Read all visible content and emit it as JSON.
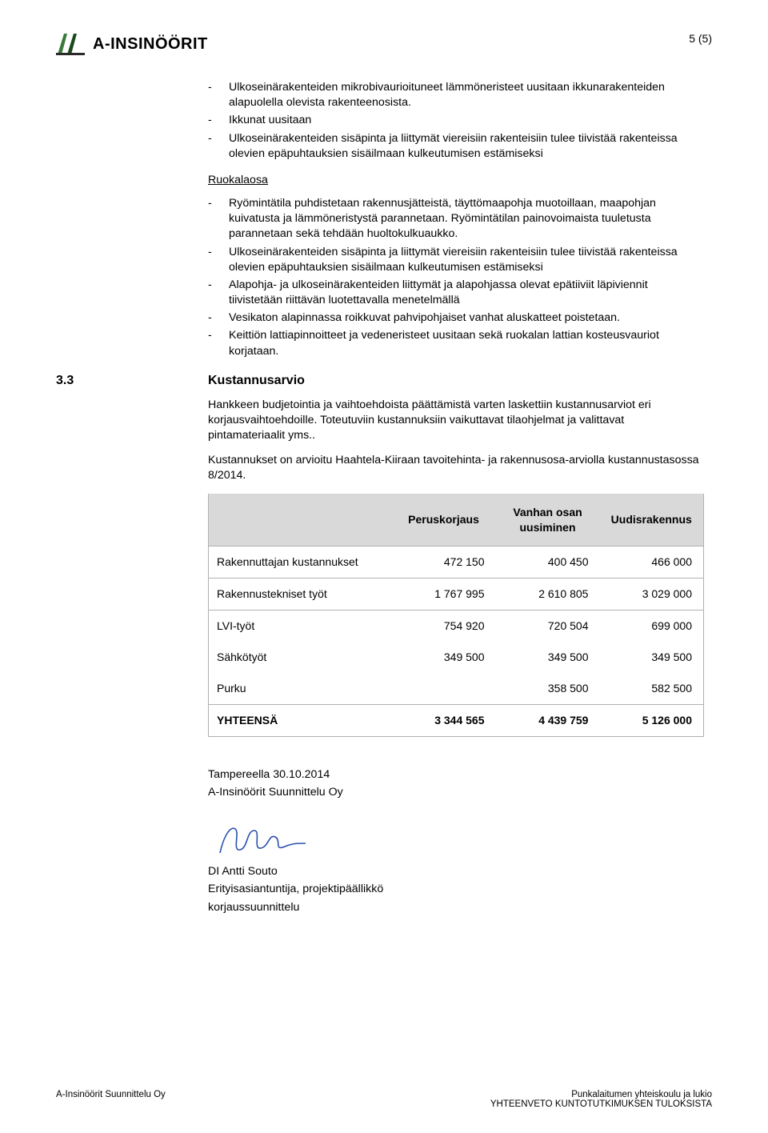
{
  "header": {
    "logo_text": "A-INSINÖÖRIT",
    "page_num": "5 (5)"
  },
  "body": {
    "top_bullets": [
      "Ulkoseinärakenteiden mikrobivaurioituneet lämmöneristeet uusitaan ikkunarakenteiden alapuolella olevista rakenteenosista.",
      "Ikkunat uusitaan",
      "Ulkoseinärakenteiden sisäpinta ja liittymät viereisiin rakenteisiin tulee tiivistää rakenteissa olevien epäpuhtauksien sisäilmaan kulkeutumisen estämiseksi"
    ],
    "ruokala_heading": "Ruokalaosa",
    "ruokala_bullets": [
      "Ryömintätila puhdistetaan rakennusjätteistä, täyttömaapohja muotoillaan, maapohjan kuivatusta ja lämmöneristystä parannetaan. Ryömintätilan painovoimaista tuuletusta parannetaan sekä tehdään huoltokulkuaukko.",
      "Ulkoseinärakenteiden sisäpinta ja liittymät viereisiin rakenteisiin tulee tiivistää rakenteissa olevien epäpuhtauksien sisäilmaan kulkeutumisen estämiseksi",
      "Alapohja- ja ulkoseinärakenteiden liittymät ja alapohjassa olevat epätiiviit läpiviennit tiivistetään riittävän luotettavalla menetelmällä",
      "Vesikaton alapinnassa roikkuvat pahvipohjaiset vanhat aluskatteet poistetaan.",
      "Keittiön lattiapinnoitteet ja vedeneristeet uusitaan sekä ruokalan lattian kosteusvauriot korjataan."
    ]
  },
  "section": {
    "num": "3.3",
    "title": "Kustannusarvio",
    "para1": "Hankkeen budjetointia ja vaihtoehdoista päättämistä varten laskettiin kustannusarviot eri korjausvaihtoehdoille. Toteutuviin kustannuksiin vaikuttavat tilaohjelmat ja valittavat pintamateriaalit yms..",
    "para2": "Kustannukset on arvioitu Haahtela-Kiiraan tavoitehinta- ja rakennusosa-arviolla kustannustasossa 8/2014."
  },
  "table": {
    "columns": [
      "",
      "Peruskorjaus",
      "Vanhan osan uusiminen",
      "Uudisrakennus"
    ],
    "col_widths": [
      "37%",
      "21%",
      "21%",
      "21%"
    ],
    "header_bg": "#d9d9d9",
    "border_color": "#b0b0b0",
    "rows": [
      {
        "label": "Rakennuttajan kustannukset",
        "vals": [
          "472 150",
          "400 450",
          "466 000"
        ]
      },
      {
        "label": "Rakennustekniset työt",
        "vals": [
          "1 767 995",
          "2 610 805",
          "3 029 000"
        ]
      },
      {
        "label": "LVI-työt",
        "vals": [
          "754 920",
          "720 504",
          "699 000"
        ],
        "noborder": true
      },
      {
        "label": "Sähkötyöt",
        "vals": [
          "349 500",
          "349 500",
          "349 500"
        ],
        "noborder": true
      },
      {
        "label": "Purku",
        "vals": [
          "",
          "358 500",
          "582 500"
        ]
      }
    ],
    "total": {
      "label": "YHTEENSÄ",
      "vals": [
        "3 344 565",
        "4 439 759",
        "5 126 000"
      ]
    }
  },
  "signature": {
    "place_date": "Tampereella 30.10.2014",
    "company": "A-Insinöörit Suunnittelu Oy",
    "name": "DI Antti Souto",
    "title": "Erityisasiantuntija, projektipäällikkö",
    "dept": "korjaussuunnittelu",
    "stroke_color": "#2a4fae"
  },
  "footer": {
    "left": "A-Insinöörit Suunnittelu Oy",
    "right1": "Punkalaitumen yhteiskoulu ja lukio",
    "right2": "YHTEENVETO KUNTOTUTKIMUKSEN TULOKSISTA"
  }
}
